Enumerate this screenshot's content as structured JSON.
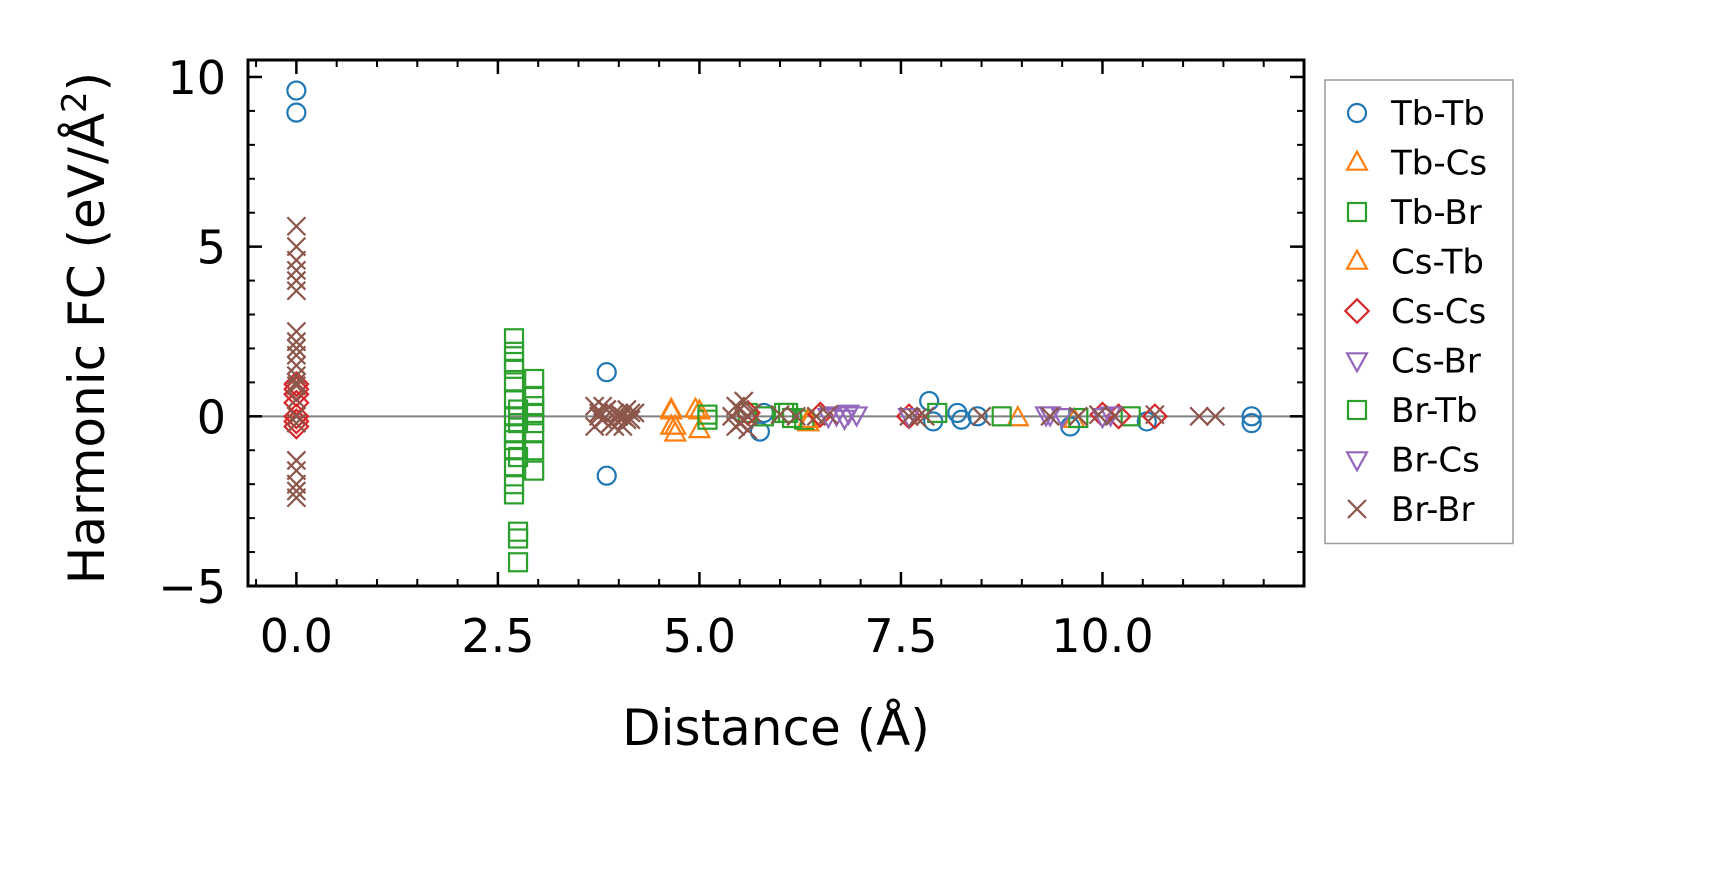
{
  "chart_data": {
    "type": "scatter",
    "title": "",
    "xlabel": "Distance (Å)",
    "ylabel_main": "Harmonic FC (eV/Å",
    "ylabel_sup": "2",
    "ylabel_close": ")",
    "xlim": [
      -0.6,
      12.5
    ],
    "ylim": [
      -5,
      10.5
    ],
    "x_ticks": [
      0.0,
      2.5,
      5.0,
      7.5,
      10.0
    ],
    "x_tick_labels": [
      "0.0",
      "2.5",
      "5.0",
      "7.5",
      "10.0"
    ],
    "y_ticks": [
      -5,
      0,
      5,
      10
    ],
    "y_tick_labels": [
      "−5",
      "0",
      "5",
      "10"
    ],
    "zero_line": true,
    "grid": false,
    "legend_position": "outside-right",
    "series": [
      {
        "name": "Tb-Tb",
        "marker": "circle",
        "filled": false,
        "color": "#1f77b4",
        "x": [
          0.0,
          0.0,
          3.85,
          3.85,
          5.8,
          5.75,
          7.85,
          7.9,
          8.2,
          8.25,
          8.45,
          9.6,
          10.55,
          11.85,
          11.85
        ],
        "y": [
          9.6,
          8.95,
          1.3,
          -1.75,
          0.1,
          -0.45,
          0.45,
          -0.15,
          0.1,
          -0.1,
          0.0,
          -0.3,
          -0.15,
          0.0,
          -0.2
        ]
      },
      {
        "name": "Tb-Cs",
        "marker": "triangle-up",
        "filled": false,
        "color": "#ff7f0e",
        "x": [
          4.65,
          4.65,
          4.7,
          4.95,
          5.0,
          6.35,
          8.95,
          9.65
        ],
        "y": [
          0.2,
          -0.3,
          -0.5,
          0.2,
          -0.4,
          -0.2,
          -0.05,
          -0.1
        ]
      },
      {
        "name": "Tb-Br",
        "marker": "square",
        "filled": false,
        "color": "#2ca02c",
        "x": [
          2.7,
          2.7,
          2.7,
          2.7,
          2.7,
          2.7,
          2.7,
          2.7,
          2.7,
          2.7,
          2.7,
          2.75,
          2.75,
          2.75,
          2.75,
          2.75,
          2.95,
          2.95,
          2.95,
          2.95,
          2.95,
          2.95,
          5.1,
          5.6,
          5.8,
          6.1,
          6.3,
          7.95,
          8.75,
          9.7,
          10.35
        ],
        "y": [
          2.3,
          1.9,
          1.6,
          1.0,
          0.5,
          0.0,
          -0.5,
          -1.0,
          -1.5,
          -2.0,
          -2.3,
          -3.4,
          -3.6,
          -4.3,
          0.2,
          -0.2,
          1.1,
          0.6,
          0.1,
          -0.5,
          -1.0,
          -1.6,
          -0.1,
          0.1,
          0.0,
          0.1,
          -0.1,
          0.1,
          0.0,
          -0.05,
          0.0
        ]
      },
      {
        "name": "Cs-Tb",
        "marker": "triangle-up",
        "filled": false,
        "color": "#ff7f0e",
        "x": [
          4.65,
          4.7,
          5.0,
          6.35
        ],
        "y": [
          0.15,
          -0.3,
          0.15,
          -0.1
        ]
      },
      {
        "name": "Cs-Cs",
        "marker": "diamond",
        "filled": false,
        "color": "#d62728",
        "x": [
          0.0,
          0.0,
          0.0,
          0.0,
          0.0,
          0.0,
          0.0,
          5.6,
          6.5,
          7.6,
          10.0,
          10.2,
          10.65
        ],
        "y": [
          0.95,
          0.8,
          0.65,
          0.4,
          0.0,
          -0.15,
          -0.3,
          0.1,
          0.05,
          0.0,
          0.05,
          0.0,
          0.0
        ]
      },
      {
        "name": "Cs-Br",
        "marker": "triangle-down",
        "filled": false,
        "color": "#9467bd",
        "x": [
          6.7,
          6.8,
          6.95,
          7.6,
          9.3,
          9.5,
          10.1
        ],
        "y": [
          0.05,
          -0.05,
          0.05,
          0.0,
          0.05,
          0.0,
          0.05
        ]
      },
      {
        "name": "Br-Tb",
        "marker": "square",
        "filled": false,
        "color": "#2ca02c",
        "x": [
          2.7,
          2.7,
          2.75,
          2.95,
          2.95,
          5.1,
          6.05,
          6.15
        ],
        "y": [
          1.4,
          -0.7,
          -1.2,
          0.3,
          -0.2,
          0.05,
          0.1,
          -0.05
        ]
      },
      {
        "name": "Br-Cs",
        "marker": "triangle-down",
        "filled": false,
        "color": "#9467bd",
        "x": [
          6.6,
          6.85,
          9.35,
          10.0
        ],
        "y": [
          0.0,
          0.1,
          0.05,
          0.0
        ]
      },
      {
        "name": "Br-Br",
        "marker": "x",
        "filled": false,
        "color": "#8c564b",
        "x": [
          0.0,
          0.0,
          0.0,
          0.0,
          0.0,
          0.0,
          0.0,
          0.0,
          0.0,
          0.0,
          0.0,
          0.0,
          0.0,
          0.0,
          0.0,
          0.0,
          0.0,
          0.0,
          0.0,
          0.0,
          0.0,
          0.0,
          3.7,
          3.75,
          3.8,
          3.85,
          3.9,
          3.95,
          4.0,
          4.05,
          4.1,
          4.15,
          4.2,
          3.7,
          3.8,
          3.9,
          4.0,
          4.1,
          3.75,
          3.85,
          3.95,
          4.05,
          4.15,
          5.4,
          5.45,
          5.5,
          5.55,
          5.6,
          5.65,
          5.5,
          5.55,
          5.6,
          5.45,
          5.6,
          6.0,
          6.2,
          6.45,
          6.6,
          7.6,
          7.7,
          7.8,
          8.5,
          9.35,
          9.7,
          9.95,
          10.15,
          10.65,
          11.2,
          11.4
        ],
        "y": [
          5.6,
          5.0,
          4.6,
          4.3,
          4.0,
          3.7,
          2.5,
          2.2,
          2.0,
          1.8,
          1.5,
          1.2,
          0.9,
          0.5,
          -0.2,
          -1.3,
          -1.6,
          -2.0,
          -2.2,
          -2.4,
          0.0,
          1.0,
          0.3,
          0.1,
          -0.1,
          0.2,
          -0.2,
          0.1,
          0.0,
          -0.3,
          0.2,
          -0.1,
          0.1,
          -0.3,
          0.3,
          -0.2,
          0.1,
          -0.1,
          0.0,
          0.2,
          -0.3,
          0.0,
          0.1,
          0.0,
          0.3,
          -0.2,
          0.45,
          -0.4,
          0.1,
          0.2,
          -0.1,
          0.0,
          -0.3,
          0.0,
          0.05,
          0.0,
          0.0,
          0.05,
          0.0,
          -0.05,
          0.0,
          0.0,
          0.0,
          0.0,
          0.05,
          0.0,
          0.05,
          0.0,
          0.0
        ]
      }
    ]
  }
}
